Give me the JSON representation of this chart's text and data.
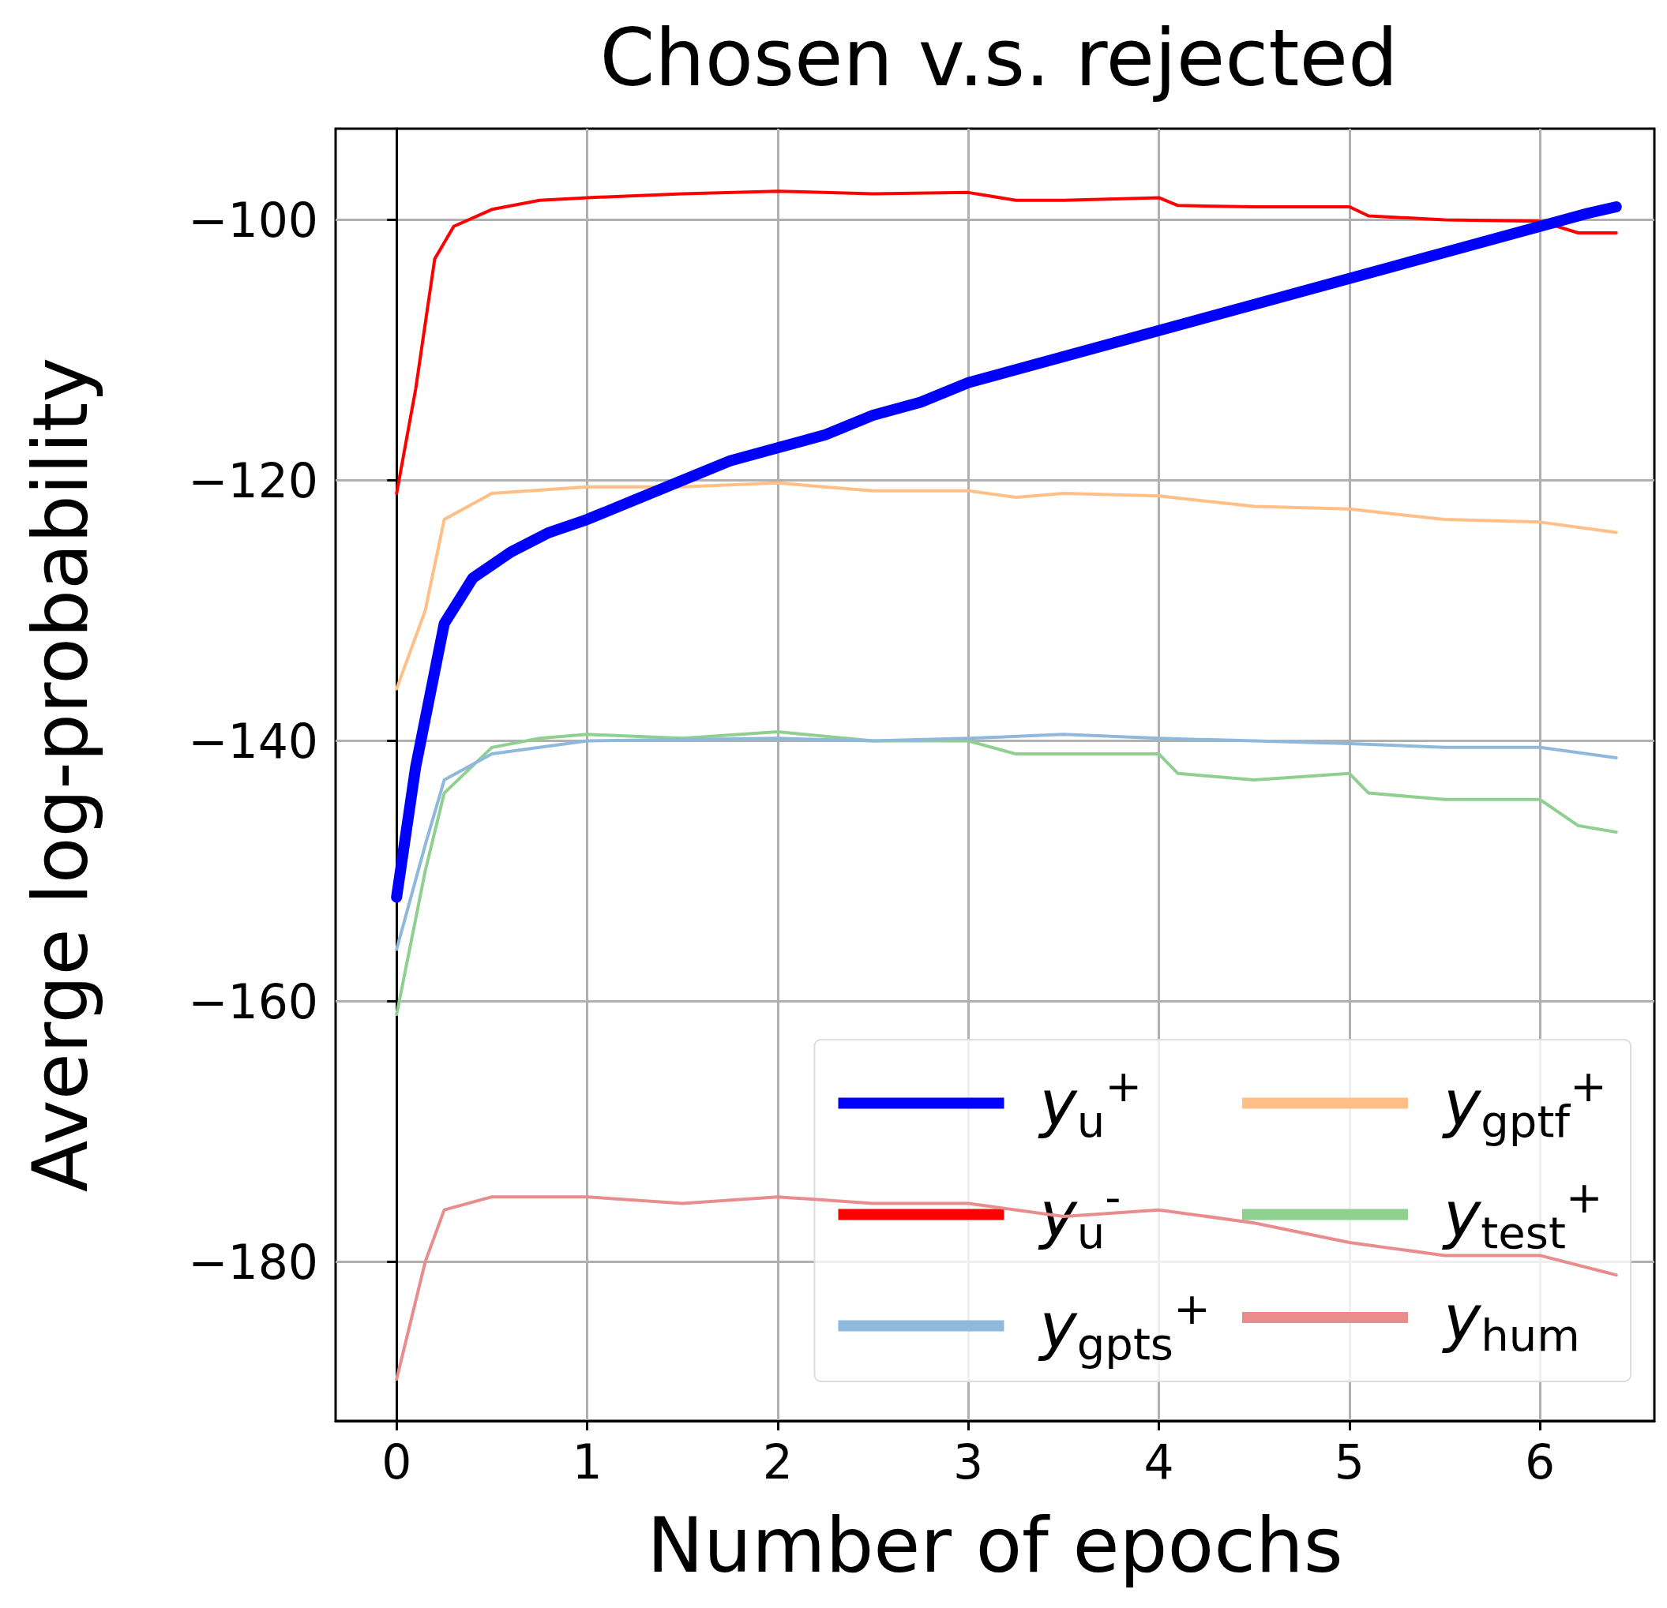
{
  "chart_data": {
    "type": "line",
    "title": "Chosen v.s. rejected",
    "xlabel": "Number of epochs",
    "ylabel": "Averge log-probability",
    "xlim": [
      -0.32,
      6.6
    ],
    "xticks": [
      0,
      1,
      2,
      3,
      4,
      5,
      6
    ],
    "ylim": [
      -192.2,
      -93
    ],
    "yticks": [
      -180,
      -160,
      -140,
      -120,
      -100
    ],
    "grid": true,
    "legend": "bottom right",
    "marker": "none",
    "line_style": "solid",
    "series": [
      {
        "name": "y$_{u}$$^{+}$",
        "color": "#0000ff",
        "x": [
          0,
          0.1,
          0.25,
          0.4,
          0.6,
          0.8,
          1,
          1.25,
          1.5,
          1.75,
          2,
          2.25,
          2.5,
          2.75,
          3,
          3.25,
          3.5,
          3.75,
          4,
          4.25,
          4.5,
          4.75,
          5,
          5.25,
          5.5,
          5.75,
          6,
          6.25,
          6.4
        ],
        "values": [
          -152,
          -142,
          -131,
          -127.5,
          -125.5,
          -124,
          -123,
          -121.5,
          -120,
          -118.5,
          -117.5,
          -116.5,
          -115,
          -114,
          -112.5,
          -111.5,
          -110.5,
          -109.5,
          -108.5,
          -107.5,
          -106.5,
          -105.5,
          -104.5,
          -103.5,
          -102.5,
          -101.5,
          -100.5,
          -99.5,
          -99
        ]
      },
      {
        "name": "y$_{u}$$^{-}$",
        "color": "#ff0000",
        "x": [
          0,
          0.1,
          0.2,
          0.3,
          0.5,
          0.75,
          1,
          1.5,
          2,
          2.5,
          3,
          3.25,
          3.5,
          4,
          4.1,
          4.5,
          5,
          5.1,
          5.5,
          6,
          6.2,
          6.4
        ],
        "values": [
          -121,
          -113,
          -103,
          -100.5,
          -99.2,
          -98.5,
          -98.3,
          -98,
          -97.8,
          -98,
          -97.9,
          -98.5,
          -98.5,
          -98.3,
          -98.9,
          -99,
          -99,
          -99.7,
          -100,
          -100.1,
          -101,
          -101
        ]
      },
      {
        "name": "y$_{gpts}$$^{+}$",
        "color": "#8fb9dc",
        "x": [
          0,
          0.15,
          0.25,
          0.5,
          0.75,
          1,
          2,
          2.5,
          3,
          3.5,
          4,
          4.5,
          5,
          5.5,
          6,
          6.4
        ],
        "values": [
          -156,
          -148,
          -143,
          -141,
          -140.5,
          -140,
          -139.8,
          -140,
          -139.8,
          -139.5,
          -139.8,
          -140,
          -140.2,
          -140.5,
          -140.5,
          -141.3
        ]
      },
      {
        "name": "y$_{gptf}$$^{+}$",
        "color": "#ffbf86",
        "x": [
          0,
          0.15,
          0.25,
          0.5,
          1,
          1.5,
          2,
          2.5,
          3,
          3.25,
          3.5,
          4,
          4.5,
          5,
          5.5,
          6,
          6.4
        ],
        "values": [
          -136,
          -130,
          -123,
          -121,
          -120.5,
          -120.5,
          -120.2,
          -120.8,
          -120.8,
          -121.3,
          -121,
          -121.2,
          -122,
          -122.2,
          -123,
          -123.2,
          -124
        ]
      },
      {
        "name": "y$_{test}$$^{+}$",
        "color": "#8fcf8f",
        "x": [
          0,
          0.15,
          0.25,
          0.5,
          0.75,
          1,
          1.5,
          2,
          2.5,
          3,
          3.25,
          4,
          4.1,
          4.5,
          5,
          5.1,
          5.5,
          6,
          6.2,
          6.4
        ],
        "values": [
          -161,
          -150,
          -144,
          -140.5,
          -139.8,
          -139.5,
          -139.8,
          -139.3,
          -140,
          -140,
          -141,
          -141,
          -142.5,
          -143,
          -142.5,
          -144,
          -144.5,
          -144.5,
          -146.5,
          -147
        ]
      },
      {
        "name": "y$_{hum}$",
        "color": "#e88c8c",
        "x": [
          0,
          0.15,
          0.25,
          0.5,
          1,
          1.5,
          2,
          2.5,
          3,
          3.5,
          4,
          4.5,
          5,
          5.5,
          6,
          6.4
        ],
        "values": [
          -189,
          -180,
          -176,
          -175,
          -175,
          -175.5,
          -175,
          -175.5,
          -175.5,
          -176.5,
          -176,
          -177,
          -178.5,
          -179.5,
          -179.5,
          -181
        ]
      }
    ]
  }
}
